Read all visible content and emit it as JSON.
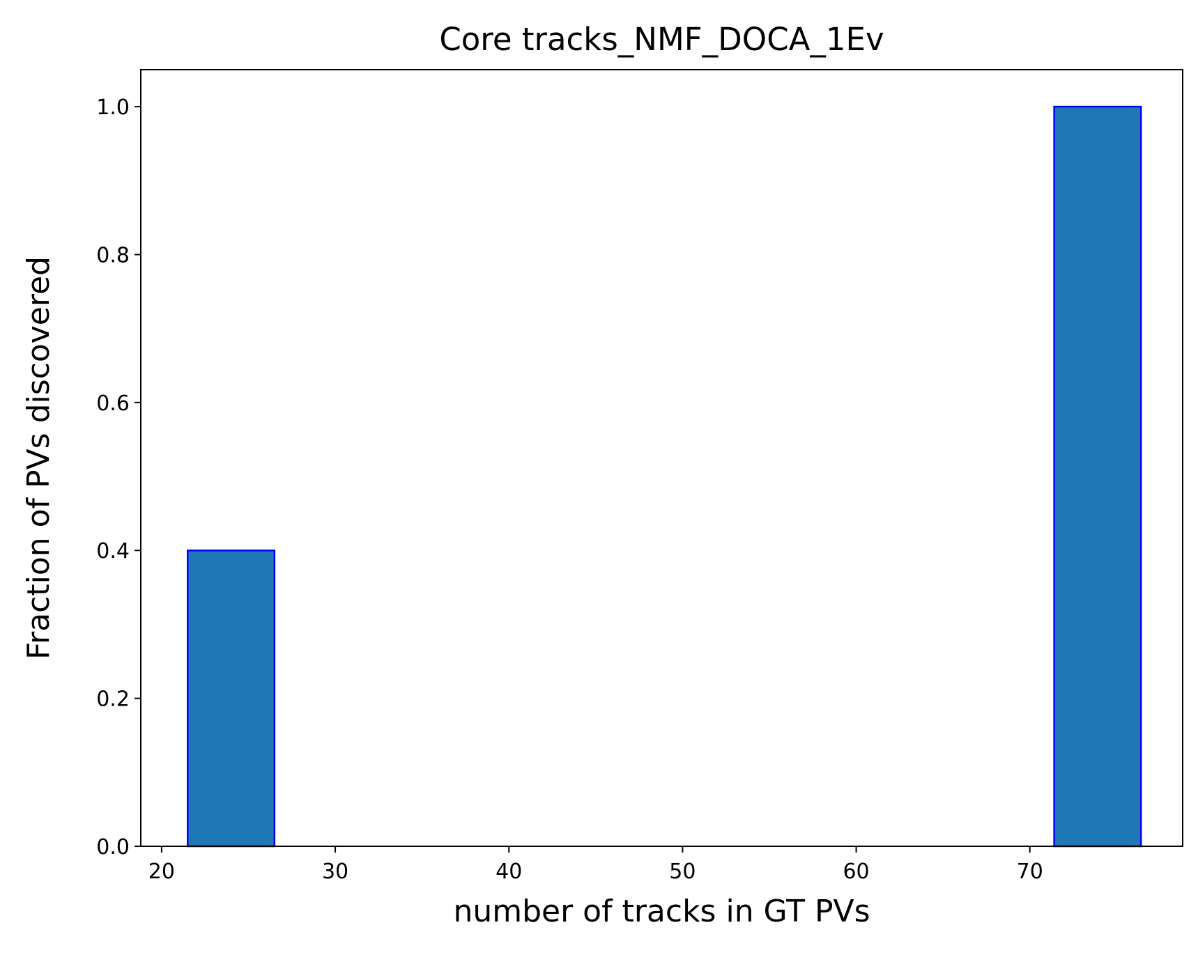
{
  "chart_data": {
    "type": "bar",
    "title": "Core tracks_NMF_DOCA_1Ev",
    "xlabel": "number of tracks in GT PVs",
    "ylabel": "Fraction of PVs discovered",
    "xlim": [
      18.8,
      78.8
    ],
    "ylim": [
      0,
      1.05
    ],
    "xticks": [
      20,
      30,
      40,
      50,
      60,
      70
    ],
    "xtick_labels": [
      "20",
      "30",
      "40",
      "50",
      "60",
      "70"
    ],
    "yticks": [
      0,
      0.2,
      0.4,
      0.6,
      0.8,
      1.0
    ],
    "ytick_labels": [
      "0.0",
      "0.2",
      "0.4",
      "0.6",
      "0.8",
      "1.0"
    ],
    "bars": [
      {
        "x_start": 21.5,
        "x_end": 26.5,
        "value": 0.4
      },
      {
        "x_start": 71.4,
        "x_end": 76.4,
        "value": 1.0
      }
    ],
    "grid": false,
    "colors": {
      "fill": "#1f77b4",
      "edge": "#0000ff"
    }
  }
}
